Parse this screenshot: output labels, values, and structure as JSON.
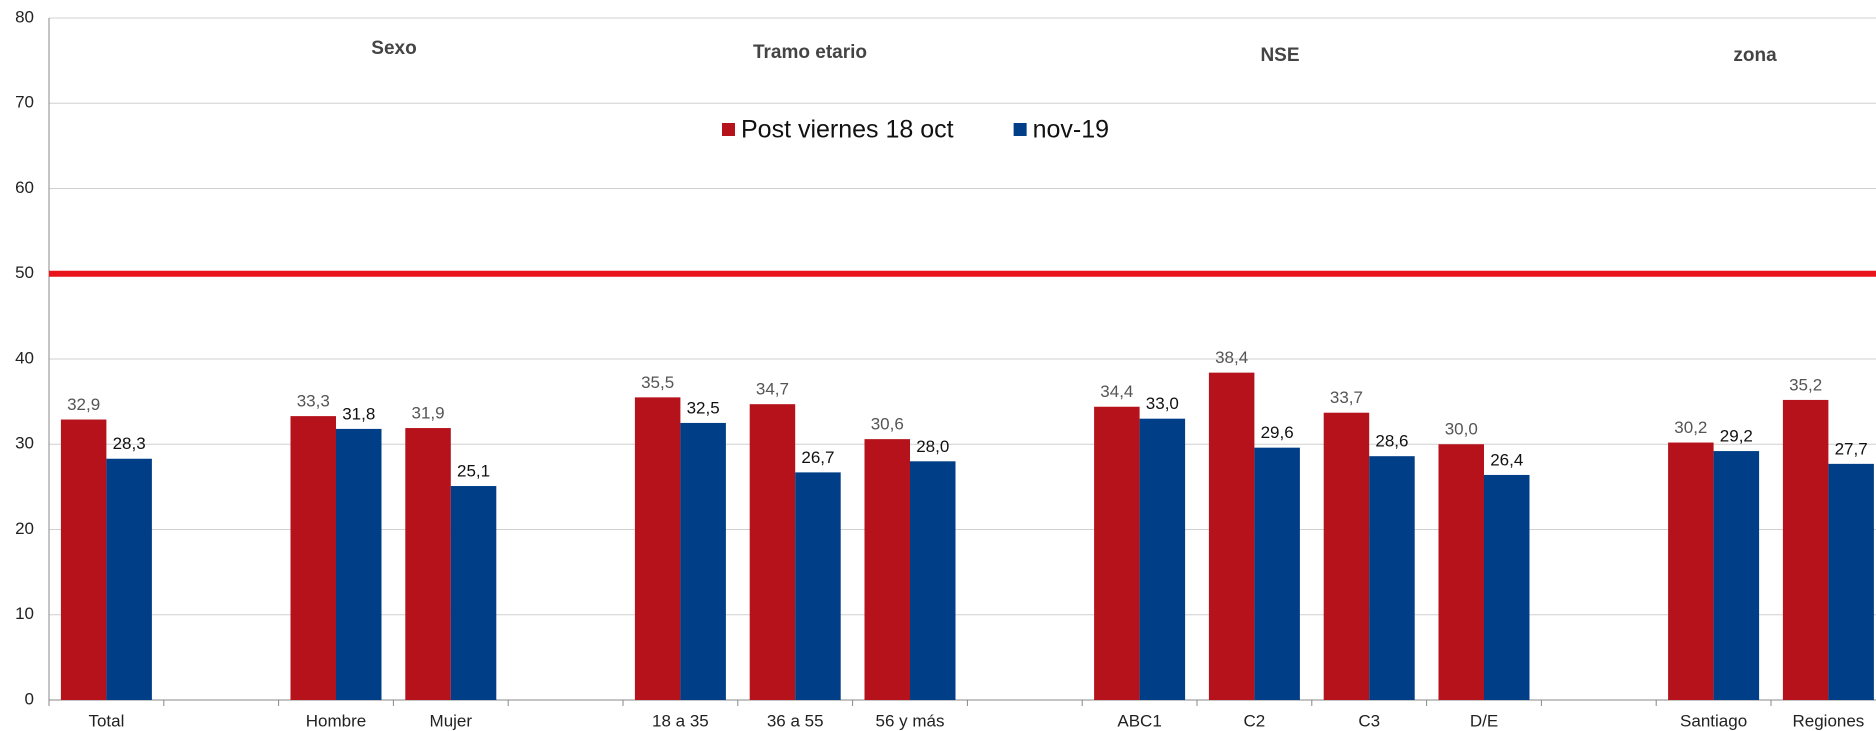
{
  "chart_data": {
    "type": "bar",
    "categories": [
      "Total",
      null,
      "Hombre",
      "Mujer",
      null,
      "18 a 35",
      "36 a 55",
      "56 y más",
      null,
      "ABC1",
      "C2",
      "C3",
      "D/E",
      null,
      "Santiago",
      "Regiones"
    ],
    "series": [
      {
        "name": "Post viernes 18 oct",
        "color": "#b5121b",
        "values": [
          32.9,
          null,
          33.3,
          31.9,
          null,
          35.5,
          34.7,
          30.6,
          null,
          34.4,
          38.4,
          33.7,
          30.0,
          null,
          30.2,
          35.2
        ],
        "value_labels": [
          "32,9",
          null,
          "33,3",
          "31,9",
          null,
          "35,5",
          "34,7",
          "30,6",
          null,
          "34,4",
          "38,4",
          "33,7",
          "30,0",
          null,
          "30,2",
          "35,2"
        ]
      },
      {
        "name": "nov-19",
        "color": "#003f87",
        "values": [
          28.3,
          null,
          31.8,
          25.1,
          null,
          32.5,
          26.7,
          28.0,
          null,
          33.0,
          29.6,
          28.6,
          26.4,
          null,
          29.2,
          27.7
        ],
        "value_labels": [
          "28,3",
          null,
          "31,8",
          "25,1",
          null,
          "32,5",
          "26,7",
          "28,0",
          null,
          "33,0",
          "29,6",
          "28,6",
          "26,4",
          null,
          "29,2",
          "27,7"
        ]
      }
    ],
    "annotations": [
      "Sexo",
      "Tramo etario",
      "NSE",
      "zona"
    ],
    "reference_line": {
      "value": 50,
      "color": "#e8141a"
    },
    "ylim": [
      0,
      80
    ],
    "yticks": [
      0,
      10,
      20,
      30,
      40,
      50,
      60,
      70,
      80
    ],
    "grid": true
  }
}
